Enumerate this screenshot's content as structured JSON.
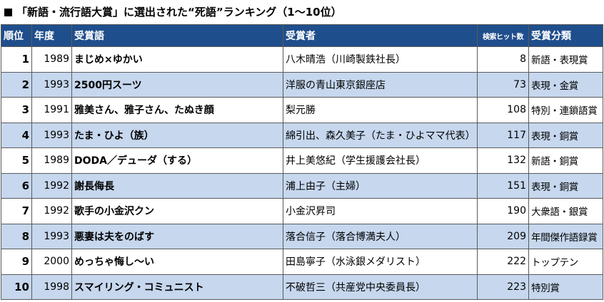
{
  "title": "「新語・流行語大賞」に選出された“死語”ランキング（1～10位）",
  "headers": {
    "rank": "順位",
    "year": "年度",
    "word": "受賞語",
    "recipient": "受賞者",
    "hits": "検索ヒット数",
    "category": "受賞分類"
  },
  "rows": [
    {
      "rank": "1",
      "year": "1989",
      "word": "まじめ×ゆかい",
      "recipient": "八木晴浩（川崎製鉄社長）",
      "hits": "8",
      "category": "新語・表現賞"
    },
    {
      "rank": "2",
      "year": "1993",
      "word": "2500円スーツ",
      "recipient": "洋服の青山東京銀座店",
      "hits": "73",
      "category": "表現・金賞"
    },
    {
      "rank": "3",
      "year": "1991",
      "word": "雅美さん、雅子さん、たぬき顔",
      "recipient": "梨元勝",
      "hits": "108",
      "category": "特別・連鎖語賞"
    },
    {
      "rank": "4",
      "year": "1993",
      "word": "たま・ひよ（族）",
      "recipient": "綿引出、森久美子（たま・ひよママ代表）",
      "hits": "117",
      "category": "表現・銅賞"
    },
    {
      "rank": "5",
      "year": "1989",
      "word": "DODA／デューダ（する）",
      "recipient": "井上美悠紀（学生援護会社長）",
      "hits": "132",
      "category": "新語・銅賞"
    },
    {
      "rank": "6",
      "year": "1992",
      "word": "謝長侮長",
      "recipient": "浦上由子（主婦）",
      "hits": "151",
      "category": "表現・銅賞"
    },
    {
      "rank": "7",
      "year": "1992",
      "word": "歌手の小金沢クン",
      "recipient": "小金沢昇司",
      "hits": "190",
      "category": "大衆語・銀賞"
    },
    {
      "rank": "8",
      "year": "1993",
      "word": "悪妻は夫をのばす",
      "recipient": "落合信子（落合博満夫人）",
      "hits": "209",
      "category": "年間傑作語録賞"
    },
    {
      "rank": "9",
      "year": "2000",
      "word": "めっちゃ悔し～い",
      "recipient": "田島寧子（水泳銀メダリスト）",
      "hits": "222",
      "category": "トップテン"
    },
    {
      "rank": "10",
      "year": "1998",
      "word": "スマイリング・コミュニスト",
      "recipient": "不破哲三（共産党中央委員長）",
      "hits": "223",
      "category": "特別賞"
    }
  ]
}
